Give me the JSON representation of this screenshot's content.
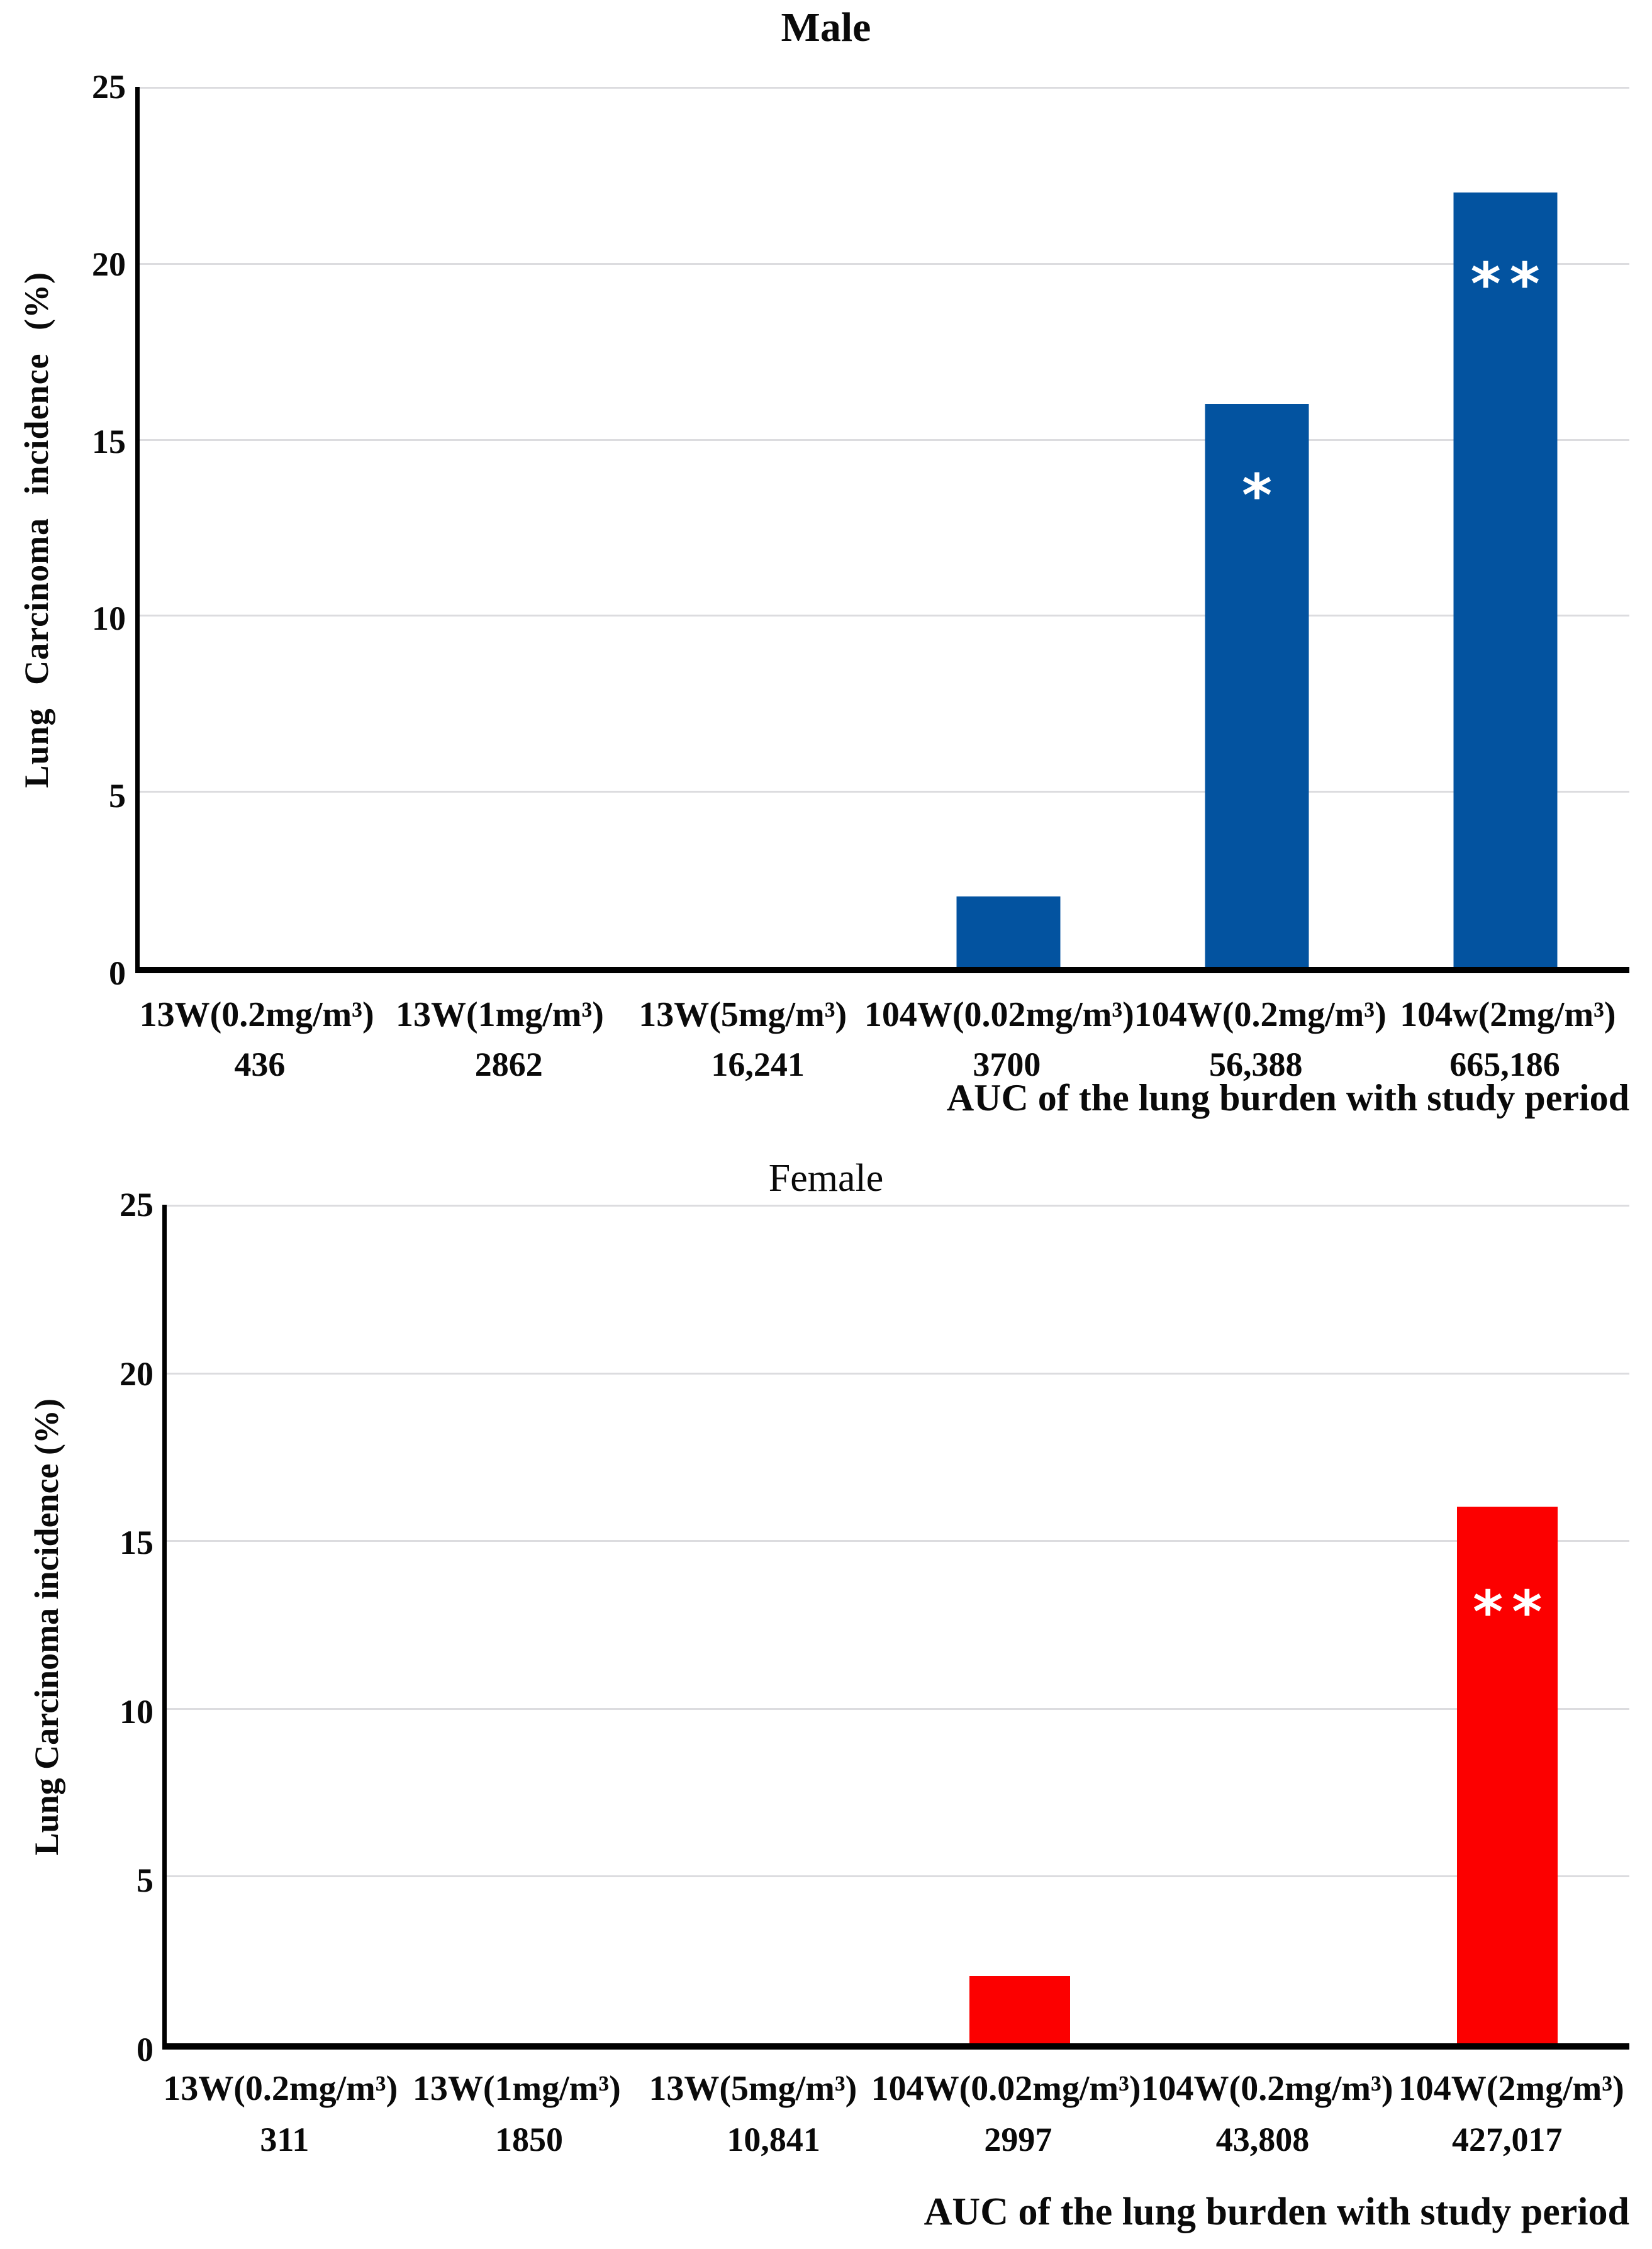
{
  "figure": {
    "background": "#FFFFFF",
    "gridline_color": "#DCDCDF",
    "axis_color": "#000000",
    "annotation_color": "#FFFFFF"
  },
  "chart_data": [
    {
      "type": "bar",
      "title": "Male",
      "ylabel": "Lung Carcinoma incidence (%)",
      "xlabel": "AUC of the lung burden with study period",
      "ylim": [
        0,
        25
      ],
      "yticks": [
        "25",
        "20",
        "15",
        "10",
        "5",
        "0"
      ],
      "grid": "horizontal",
      "legend": "none",
      "bar_color": "#0353A0",
      "categories": [
        "13W(0.2mg/m³)",
        "13W(1mg/m³)",
        "13W(5mg/m³)",
        "104W(0.02mg/m³)",
        "104W(0.2mg/m³)",
        "104w(2mg/m³)"
      ],
      "auc_values": [
        "436",
        "2862",
        "16,241",
        "3700",
        "56,388",
        "665,186"
      ],
      "values": [
        0,
        0,
        0,
        2,
        16,
        22
      ],
      "annotations": [
        "",
        "",
        "",
        "",
        "*",
        "**"
      ]
    },
    {
      "type": "bar",
      "title": "Female",
      "ylabel": "Lung Carcinoma incidence (%)",
      "xlabel": "AUC of the lung burden with study period",
      "ylim": [
        0,
        25
      ],
      "yticks": [
        "25",
        "20",
        "15",
        "10",
        "5",
        "0"
      ],
      "grid": "horizontal",
      "legend": "none",
      "bar_color": "#FC0000",
      "categories": [
        "13W(0.2mg/m³)",
        "13W(1mg/m³)",
        "13W(5mg/m³)",
        "104W(0.02mg/m³)",
        "104W(0.2mg/m³)",
        "104W(2mg/m³)"
      ],
      "auc_values": [
        "311",
        "1850",
        "10,841",
        "2997",
        "43,808",
        "427,017"
      ],
      "values": [
        0,
        0,
        0,
        2,
        0,
        16
      ],
      "annotations": [
        "",
        "",
        "",
        "",
        "",
        "**"
      ]
    }
  ]
}
